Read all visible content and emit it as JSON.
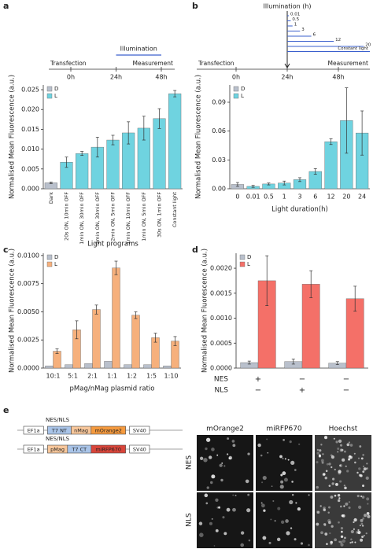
{
  "panel_labels": [
    "a",
    "b",
    "c",
    "d",
    "e"
  ],
  "chart_data": [
    {
      "type": "bar",
      "ylabel": "Normalised Mean Fluorescence (a.u.)",
      "xlabel": "Light programs",
      "categories": [
        "Dark",
        "20s ON, 10min OFF",
        "1min ON, 30min OFF",
        "2min ON, 30min OFF",
        "2min ON, 5min OFF",
        "1min ON, 10min OFF",
        "1min ON, 5min OFF",
        "30s ON, 1min OFF",
        "Constant light"
      ],
      "series": [
        {
          "name": "D",
          "color": "#b9c0cc",
          "values": [
            0.0015,
            null,
            null,
            null,
            null,
            null,
            null,
            null,
            null
          ],
          "errors": [
            0.0002,
            null,
            null,
            null,
            null,
            null,
            null,
            null,
            null
          ]
        },
        {
          "name": "L",
          "color": "#6fd3e0",
          "values": [
            null,
            0.0067,
            0.0089,
            0.0105,
            0.0123,
            0.0141,
            0.0153,
            0.0177,
            0.024
          ],
          "errors": [
            null,
            0.0013,
            0.0005,
            0.0025,
            0.0012,
            0.0028,
            0.003,
            0.0025,
            0.0008
          ]
        }
      ],
      "ylim": [
        0,
        0.0262
      ],
      "yticks": [
        {
          "value": 0,
          "label": "0.000"
        },
        {
          "value": 0.005,
          "label": "0.005"
        },
        {
          "value": 0.01,
          "label": "0.010"
        },
        {
          "value": 0.015,
          "label": "0.015"
        },
        {
          "value": 0.02,
          "label": "0.020"
        },
        {
          "value": 0.025,
          "label": "0.025"
        }
      ],
      "legend": "upper left",
      "rotate_xticks": true,
      "timeline": {
        "start": "Transfection",
        "end": "Measurement",
        "illumination": "Illumination",
        "illumination_range": [
          24,
          48
        ],
        "ticks": [
          {
            "value": 0,
            "label": "0h"
          },
          {
            "value": 24,
            "label": "24h"
          },
          {
            "value": 48,
            "label": "48h"
          }
        ]
      }
    },
    {
      "type": "bar",
      "ylabel": "Normalised Mean Fluorescence (a.u.)",
      "xlabel": "Light duration(h)",
      "categories": [
        "0",
        "0.01",
        "0.5",
        "1",
        "3",
        "6",
        "12",
        "20",
        "24"
      ],
      "series": [
        {
          "name": "D",
          "color": "#b9c0cc",
          "values": [
            0.0045,
            null,
            null,
            null,
            null,
            null,
            null,
            null,
            null
          ],
          "errors": [
            0.002,
            null,
            null,
            null,
            null,
            null,
            null,
            null,
            null
          ]
        },
        {
          "name": "L",
          "color": "#6fd3e0",
          "values": [
            null,
            0.0025,
            0.005,
            0.006,
            0.0095,
            0.018,
            0.049,
            0.071,
            0.058
          ],
          "errors": [
            null,
            0.001,
            0.001,
            0.002,
            0.002,
            0.003,
            0.003,
            0.034,
            0.023
          ]
        }
      ],
      "ylim": [
        0,
        0.108
      ],
      "yticks": [
        {
          "value": 0,
          "label": "0.00"
        },
        {
          "value": 0.03,
          "label": "0.03"
        },
        {
          "value": 0.06,
          "label": "0.06"
        },
        {
          "value": 0.09,
          "label": "0.09"
        }
      ],
      "legend": "upper left",
      "timeline": {
        "start": "Transfection",
        "end": "Measurement",
        "illumination": "Illumination (h)",
        "durations": [
          0.01,
          0.5,
          1,
          3,
          6,
          12,
          20
        ],
        "constant": "Constant light",
        "ticks": [
          {
            "value": 0,
            "label": "0h"
          },
          {
            "value": 24,
            "label": "24h"
          },
          {
            "value": 48,
            "label": "48h"
          }
        ]
      }
    },
    {
      "type": "bar",
      "ylabel": "Normalised Mean Fluorescence (a.u.)",
      "xlabel": "pMag/nMag plasmid ratio",
      "categories": [
        "10:1",
        "5:1",
        "2:1",
        "1:1",
        "1:2",
        "1:5",
        "1:10"
      ],
      "series": [
        {
          "name": "D",
          "color": "#b9c0cc",
          "values": [
            0.0002,
            0.0003,
            0.0004,
            0.0006,
            0.0003,
            0.0003,
            0.0002
          ],
          "errors": [
            null,
            null,
            null,
            null,
            null,
            null,
            null
          ]
        },
        {
          "name": "L",
          "color": "#f6b07c",
          "values": [
            0.0015,
            0.0034,
            0.0052,
            0.0089,
            0.0047,
            0.0027,
            0.0024
          ],
          "errors": [
            0.0002,
            0.0008,
            0.0004,
            0.0006,
            0.0003,
            0.0004,
            0.0004
          ]
        }
      ],
      "ylim": [
        0,
        0.0102
      ],
      "yticks": [
        {
          "value": 0,
          "label": "0.0000"
        },
        {
          "value": 0.0025,
          "label": "0.0025"
        },
        {
          "value": 0.005,
          "label": "0.0050"
        },
        {
          "value": 0.0075,
          "label": "0.0075"
        },
        {
          "value": 0.01,
          "label": "0.0100"
        }
      ],
      "legend": "upper left"
    },
    {
      "type": "bar",
      "ylabel": "Normalised Mean Fluorescence (a.u.)",
      "categories": [
        null,
        null,
        null
      ],
      "x_rows": [
        {
          "label": "NES",
          "marks": [
            "+",
            "−",
            "−"
          ]
        },
        {
          "label": "NLS",
          "marks": [
            "−",
            "+",
            "−"
          ]
        }
      ],
      "series": [
        {
          "name": "D",
          "color": "#b9c0cc",
          "values": [
            0.00011,
            0.00013,
            0.0001
          ],
          "errors": [
            3e-05,
            5e-05,
            3e-05
          ]
        },
        {
          "name": "L",
          "color": "#f47068",
          "values": [
            0.00175,
            0.00168,
            0.00139
          ],
          "errors": [
            0.0005,
            0.00027,
            0.00025
          ]
        }
      ],
      "ylim": [
        0,
        0.0023
      ],
      "yticks": [
        {
          "value": 0,
          "label": "0.0000"
        },
        {
          "value": 0.0005,
          "label": "0.0005"
        },
        {
          "value": 0.001,
          "label": "0.0010"
        },
        {
          "value": 0.0015,
          "label": "0.0015"
        },
        {
          "value": 0.002,
          "label": "0.0020"
        }
      ],
      "legend": "upper left"
    }
  ],
  "panel_e": {
    "constructs": [
      {
        "tag": "NES/NLS",
        "parts": [
          "EF1a",
          "T7 NT",
          "nMag",
          "mOrange2",
          "SV40"
        ]
      },
      {
        "tag": "NES/NLS",
        "parts": [
          "EF1a",
          "pMag",
          "T7 CT",
          "miRFP670",
          "SV40"
        ]
      }
    ],
    "image_columns": [
      "mOrange2",
      "miRFP670",
      "Hoechst"
    ],
    "image_rows": [
      "NES",
      "NLS"
    ]
  }
}
